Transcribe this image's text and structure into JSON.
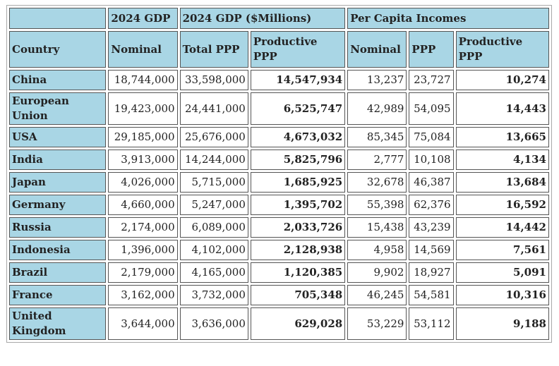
{
  "table": {
    "group_header": [
      "2024 GDP",
      "2024 GDP ($Millions)",
      "Per Capita Incomes"
    ],
    "header": [
      "Country",
      "Nominal",
      "Total PPP",
      "Productive PPP",
      "Nominal",
      "PPP",
      "Productive PPP"
    ],
    "rows": [
      [
        "China",
        "18,744,000",
        "33,598,000",
        "14,547,934",
        "13,237",
        "23,727",
        "10,274"
      ],
      [
        "European Union",
        "19,423,000",
        "24,441,000",
        "6,525,747",
        "42,989",
        "54,095",
        "14,443"
      ],
      [
        "USA",
        "29,185,000",
        "25,676,000",
        "4,673,032",
        "85,345",
        "75,084",
        "13,665"
      ],
      [
        "India",
        "3,913,000",
        "14,244,000",
        "5,825,796",
        "2,777",
        "10,108",
        "4,134"
      ],
      [
        "Japan",
        "4,026,000",
        "5,715,000",
        "1,685,925",
        "32,678",
        "46,387",
        "13,684"
      ],
      [
        "Germany",
        "4,660,000",
        "5,247,000",
        "1,395,702",
        "55,398",
        "62,376",
        "16,592"
      ],
      [
        "Russia",
        "2,174,000",
        "6,089,000",
        "2,033,726",
        "15,438",
        "43,239",
        "14,442"
      ],
      [
        "Indonesia",
        "1,396,000",
        "4,102,000",
        "2,128,938",
        "4,958",
        "14,569",
        "7,561"
      ],
      [
        "Brazil",
        "2,179,000",
        "4,165,000",
        "1,120,385",
        "9,902",
        "18,927",
        "5,091"
      ],
      [
        "France",
        "3,162,000",
        "3,732,000",
        "705,348",
        "46,245",
        "54,581",
        "10,316"
      ],
      [
        "United Kingdom",
        "3,644,000",
        "3,636,000",
        "629,028",
        "53,229",
        "53,112",
        "9,188"
      ]
    ]
  }
}
